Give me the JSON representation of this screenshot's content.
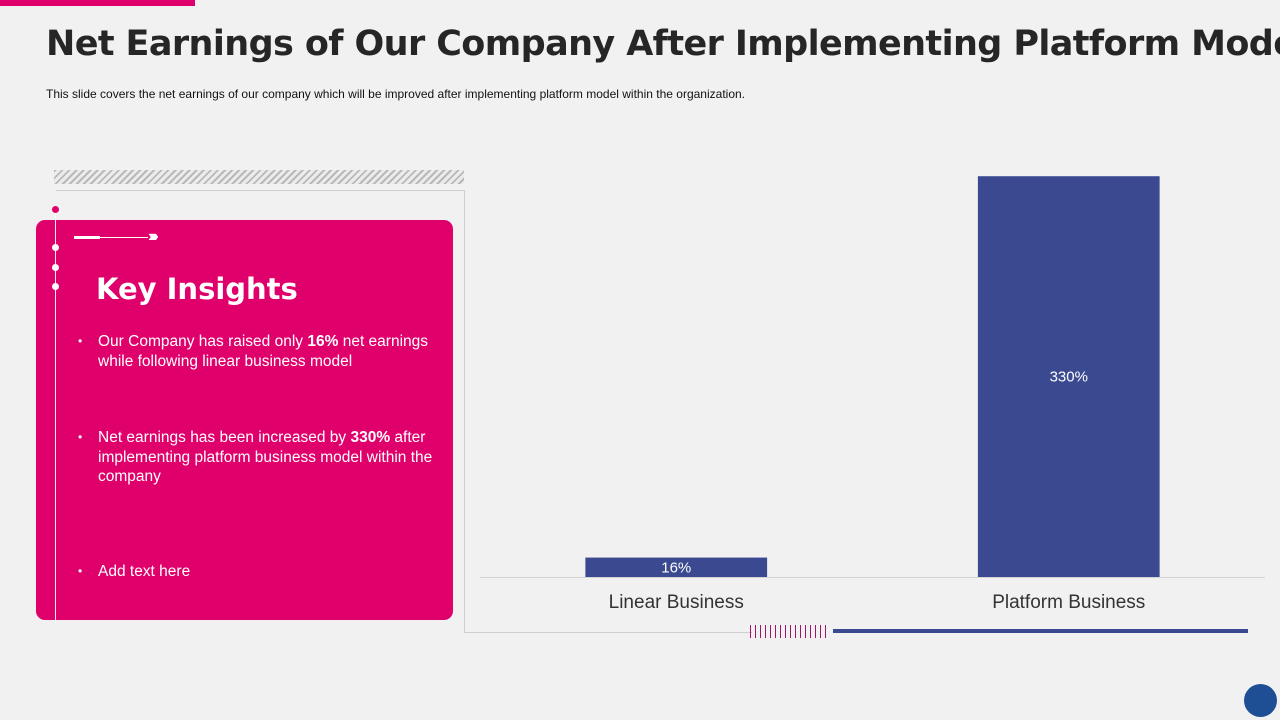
{
  "slide": {
    "title": "Net Earnings of Our Company After Implementing Platform Model",
    "subtitle": "This slide covers the net earnings of our company which will be improved  after implementing platform model within the organization."
  },
  "insights": {
    "heading": "Key Insights",
    "chevrons": "›››››",
    "bullets": [
      {
        "before": "Our Company has raised only ",
        "highlight": "16%",
        "after": " net earnings while following linear business model"
      },
      {
        "before": "Net earnings has been increased by ",
        "highlight": "330%",
        "after": " after implementing platform business model within the company"
      },
      {
        "before": "Add text here",
        "highlight": "",
        "after": ""
      }
    ]
  },
  "chart_data": {
    "type": "bar",
    "title": "",
    "xlabel": "",
    "ylabel": "",
    "categories": [
      "Linear Business",
      "Platform Business"
    ],
    "values": [
      16,
      330
    ],
    "data_labels": [
      "16%",
      "330%"
    ],
    "ylim": [
      0,
      345
    ],
    "grid": false,
    "legend": "none",
    "bar_color": "#3b4a90",
    "label_color": "#ffffff"
  },
  "theme": {
    "accent": "#e0006b",
    "bar": "#3b4a90",
    "background": "#f1f1f1"
  }
}
